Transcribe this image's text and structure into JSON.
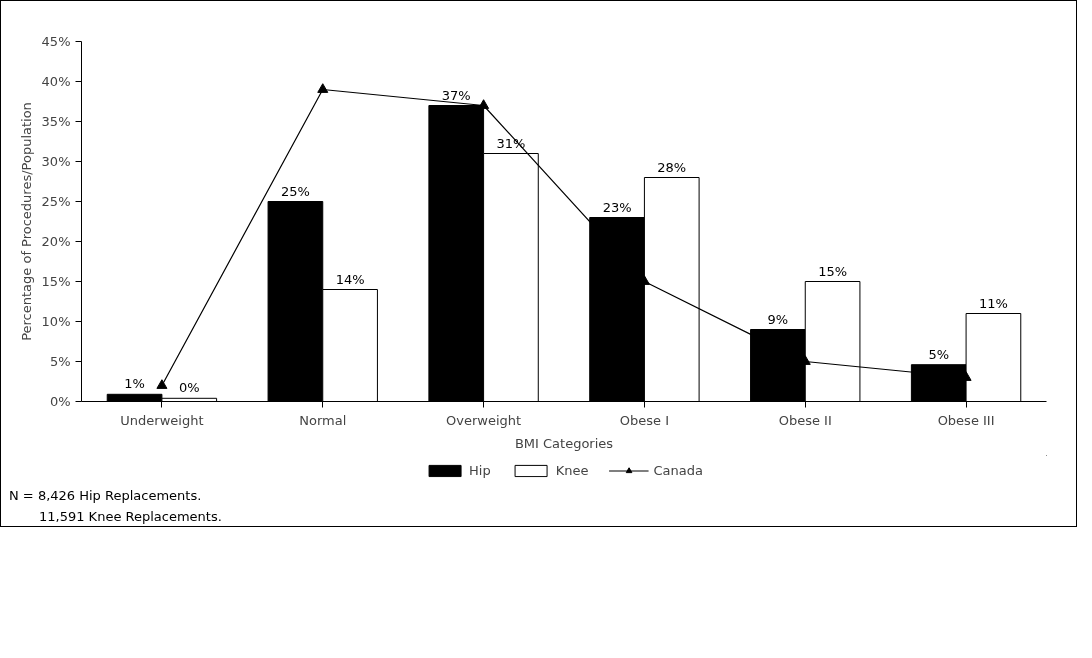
{
  "chart_data": {
    "type": "bar",
    "xlabel": "BMI Categories",
    "ylabel": "Percentage of Procedures/Population",
    "categories": [
      "Underweight",
      "Normal",
      "Overweight",
      "Obese I",
      "Obese II",
      "Obese III"
    ],
    "series": [
      {
        "name": "Hip",
        "color": "#000000",
        "values": [
          0.9,
          25,
          37,
          23,
          9,
          4.6
        ],
        "value_labels": [
          "1%",
          "25%",
          "37%",
          "23%",
          "9%",
          "5%"
        ]
      },
      {
        "name": "Knee",
        "color": "#ffffff",
        "values": [
          0.4,
          14,
          31,
          28,
          15,
          11
        ],
        "value_labels": [
          "0%",
          "14%",
          "31%",
          "28%",
          "15%",
          "11%"
        ]
      },
      {
        "name": "Canada",
        "type": "line",
        "color": "#000000",
        "marker": "triangle",
        "values": [
          2,
          39,
          37,
          15,
          5,
          3
        ]
      }
    ],
    "ylim": [
      0,
      45
    ],
    "yticks": [
      {
        "value": 0,
        "label": "0%"
      },
      {
        "value": 5,
        "label": "5%"
      },
      {
        "value": 10,
        "label": "10%"
      },
      {
        "value": 15,
        "label": "15%"
      },
      {
        "value": 20,
        "label": "20%"
      },
      {
        "value": 25,
        "label": "25%"
      },
      {
        "value": 30,
        "label": "30%"
      },
      {
        "value": 35,
        "label": "35%"
      },
      {
        "value": 40,
        "label": "40%"
      },
      {
        "value": 45,
        "label": "45%"
      }
    ],
    "grid": false,
    "legend": "bottom",
    "annotations": [
      "N = 8,426 Hip Replacements.",
      "11,591 Knee Replacements."
    ]
  }
}
